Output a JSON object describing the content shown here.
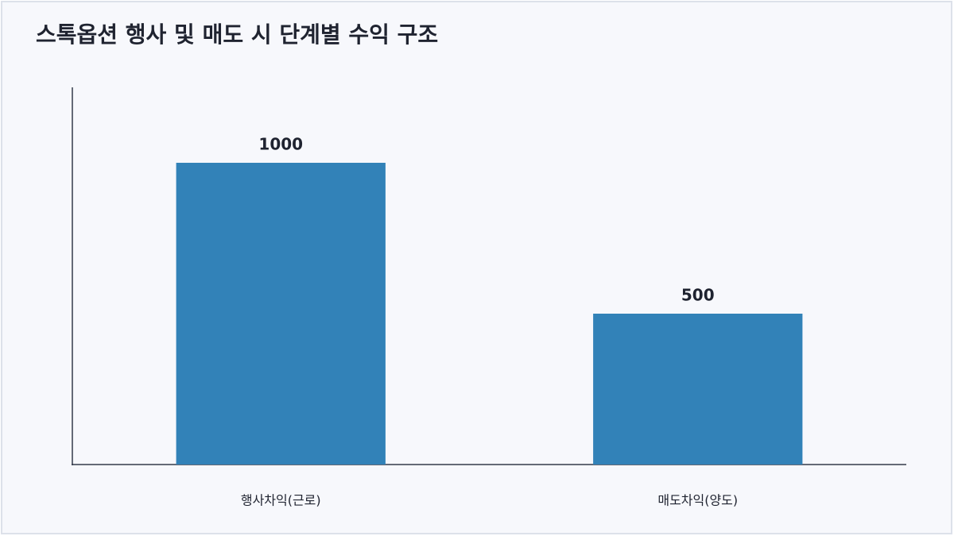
{
  "chart_data": {
    "type": "bar",
    "title": "스톡옵션 행사 및 매도 시 단계별 수익 구조",
    "categories": [
      "행사차익(근로)",
      "매도차익(양도)"
    ],
    "values": [
      1000,
      500
    ],
    "color": "#3282b8",
    "ylim": [
      0,
      1250
    ],
    "grid": false
  }
}
